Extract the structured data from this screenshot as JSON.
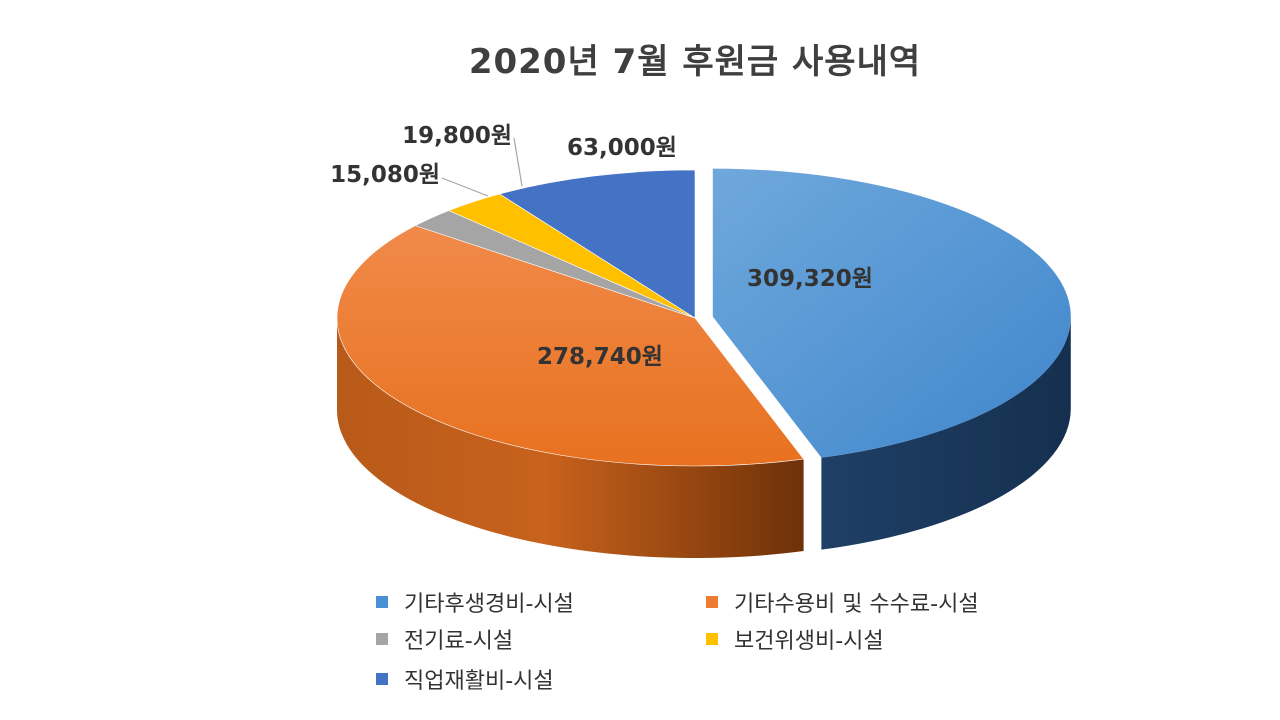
{
  "chart_data": {
    "type": "pie",
    "title": "2020년 7월 후원금 사용내역",
    "slices": [
      {
        "name": "기타후생경비-시설",
        "value": 309320,
        "label": "309,320원",
        "color": "#4A90D6"
      },
      {
        "name": "기타수용비 및 수수료-시설",
        "value": 278740,
        "label": "278,740원",
        "color": "#ED7D31"
      },
      {
        "name": "전기료-시설",
        "value": 15080,
        "label": "15,080원",
        "color": "#A5A5A5"
      },
      {
        "name": "보건위생비-시설",
        "value": 19800,
        "label": "19,800원",
        "color": "#FFC000"
      },
      {
        "name": "직업재활비-시설",
        "value": 63000,
        "label": "63,000원",
        "color": "#4472C4"
      }
    ],
    "legend_position": "bottom",
    "exploded_slice": "기타후생경비-시설"
  }
}
